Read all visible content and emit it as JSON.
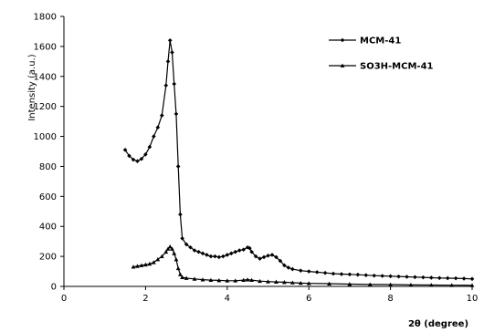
{
  "chart_data": {
    "type": "line",
    "title": "",
    "xlabel": "2θ (degree)",
    "ylabel": "Intensity (a.u.)",
    "xlim": [
      0,
      10
    ],
    "ylim": [
      0,
      1800
    ],
    "xticks": [
      0,
      2,
      4,
      6,
      8,
      10
    ],
    "yticks": [
      0,
      200,
      400,
      600,
      800,
      1000,
      1200,
      1400,
      1600,
      1800
    ],
    "grid": false,
    "legend_position": "top-right",
    "line_color": "#000000",
    "series": [
      {
        "name": "MCM-41",
        "marker": "diamond",
        "points": [
          [
            1.5,
            910
          ],
          [
            1.6,
            870
          ],
          [
            1.7,
            845
          ],
          [
            1.8,
            835
          ],
          [
            1.9,
            850
          ],
          [
            2.0,
            880
          ],
          [
            2.1,
            930
          ],
          [
            2.2,
            1000
          ],
          [
            2.3,
            1060
          ],
          [
            2.4,
            1140
          ],
          [
            2.5,
            1340
          ],
          [
            2.55,
            1500
          ],
          [
            2.6,
            1640
          ],
          [
            2.65,
            1560
          ],
          [
            2.7,
            1350
          ],
          [
            2.75,
            1150
          ],
          [
            2.8,
            800
          ],
          [
            2.85,
            480
          ],
          [
            2.9,
            320
          ],
          [
            3.0,
            280
          ],
          [
            3.1,
            260
          ],
          [
            3.2,
            240
          ],
          [
            3.3,
            230
          ],
          [
            3.4,
            220
          ],
          [
            3.5,
            210
          ],
          [
            3.6,
            200
          ],
          [
            3.7,
            200
          ],
          [
            3.8,
            195
          ],
          [
            3.9,
            200
          ],
          [
            4.0,
            210
          ],
          [
            4.1,
            220
          ],
          [
            4.2,
            230
          ],
          [
            4.3,
            240
          ],
          [
            4.4,
            245
          ],
          [
            4.5,
            260
          ],
          [
            4.55,
            255
          ],
          [
            4.6,
            230
          ],
          [
            4.7,
            200
          ],
          [
            4.8,
            185
          ],
          [
            4.9,
            195
          ],
          [
            5.0,
            205
          ],
          [
            5.1,
            210
          ],
          [
            5.2,
            195
          ],
          [
            5.3,
            170
          ],
          [
            5.4,
            140
          ],
          [
            5.5,
            125
          ],
          [
            5.6,
            115
          ],
          [
            5.8,
            105
          ],
          [
            6.0,
            100
          ],
          [
            6.2,
            95
          ],
          [
            6.4,
            90
          ],
          [
            6.6,
            85
          ],
          [
            6.8,
            82
          ],
          [
            7.0,
            80
          ],
          [
            7.2,
            78
          ],
          [
            7.4,
            75
          ],
          [
            7.6,
            72
          ],
          [
            7.8,
            70
          ],
          [
            8.0,
            68
          ],
          [
            8.2,
            66
          ],
          [
            8.4,
            64
          ],
          [
            8.6,
            62
          ],
          [
            8.8,
            60
          ],
          [
            9.0,
            58
          ],
          [
            9.2,
            56
          ],
          [
            9.4,
            55
          ],
          [
            9.6,
            54
          ],
          [
            9.8,
            52
          ],
          [
            10.0,
            50
          ]
        ]
      },
      {
        "name": "SO3H-MCM-41",
        "marker": "triangle",
        "points": [
          [
            1.7,
            130
          ],
          [
            1.8,
            135
          ],
          [
            1.9,
            140
          ],
          [
            2.0,
            145
          ],
          [
            2.1,
            150
          ],
          [
            2.2,
            160
          ],
          [
            2.3,
            180
          ],
          [
            2.4,
            200
          ],
          [
            2.5,
            230
          ],
          [
            2.55,
            250
          ],
          [
            2.6,
            265
          ],
          [
            2.65,
            250
          ],
          [
            2.7,
            220
          ],
          [
            2.75,
            180
          ],
          [
            2.8,
            120
          ],
          [
            2.85,
            80
          ],
          [
            2.9,
            60
          ],
          [
            3.0,
            55
          ],
          [
            3.2,
            50
          ],
          [
            3.4,
            45
          ],
          [
            3.6,
            42
          ],
          [
            3.8,
            40
          ],
          [
            4.0,
            38
          ],
          [
            4.2,
            38
          ],
          [
            4.4,
            42
          ],
          [
            4.5,
            45
          ],
          [
            4.6,
            42
          ],
          [
            4.8,
            35
          ],
          [
            5.0,
            32
          ],
          [
            5.2,
            30
          ],
          [
            5.4,
            28
          ],
          [
            5.6,
            25
          ],
          [
            5.8,
            22
          ],
          [
            6.0,
            20
          ],
          [
            6.5,
            18
          ],
          [
            7.0,
            15
          ],
          [
            7.5,
            13
          ],
          [
            8.0,
            12
          ],
          [
            8.5,
            10
          ],
          [
            9.0,
            9
          ],
          [
            9.5,
            8
          ],
          [
            10.0,
            7
          ]
        ]
      }
    ]
  }
}
